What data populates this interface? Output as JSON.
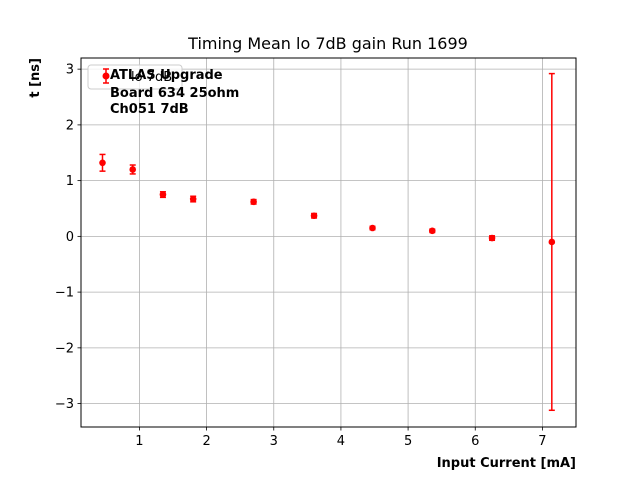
{
  "chart_data": {
    "type": "scatter",
    "title": "Timing Mean lo 7dB gain Run 1699",
    "xlabel": "Input Current [mA]",
    "ylabel": "t [ns]",
    "xlim": [
      0.13,
      7.5
    ],
    "ylim": [
      -3.42,
      3.2
    ],
    "xticks": [
      1,
      2,
      3,
      4,
      5,
      6,
      7
    ],
    "yticks": [
      -3,
      -2,
      -1,
      0,
      1,
      2,
      3
    ],
    "grid": true,
    "legend_position": "top-left",
    "annotation_lines": [
      "ATLAS Upgrade",
      "Board 634 25ohm",
      "Ch051 7dB"
    ],
    "series": [
      {
        "name": "lo 7dB",
        "color": "#ff0000",
        "x": [
          0.45,
          0.9,
          1.35,
          1.8,
          2.7,
          3.6,
          4.47,
          5.36,
          6.25,
          7.14
        ],
        "y": [
          1.32,
          1.2,
          0.75,
          0.67,
          0.62,
          0.37,
          0.15,
          0.1,
          -0.03,
          -0.1
        ],
        "yerr": [
          0.15,
          0.08,
          0.05,
          0.05,
          0.04,
          0.04,
          0.03,
          0.03,
          0.04,
          3.02
        ]
      }
    ]
  }
}
